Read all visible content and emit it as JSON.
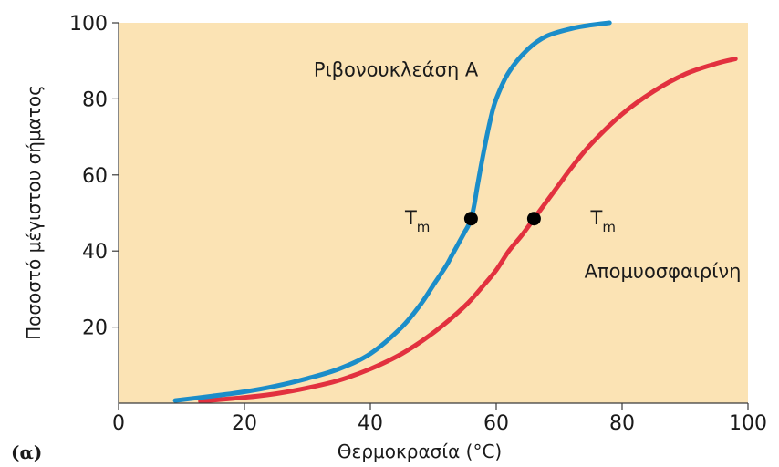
{
  "chart_data": {
    "type": "line",
    "panel_label": "(α)",
    "xlabel": "Θερμοκρασία (°C)",
    "ylabel": "Ποσοστό μέγιστου σήματος",
    "xlim": [
      0,
      100
    ],
    "ylim": [
      0,
      100
    ],
    "x_ticks": [
      0,
      20,
      40,
      60,
      80,
      100
    ],
    "y_ticks": [
      20,
      40,
      60,
      80,
      100
    ],
    "background_color": "#FBE3B4",
    "grid": false,
    "series": [
      {
        "name": "Ριβονουκλεάση Α",
        "color": "#1B8DC9",
        "x": [
          9,
          15,
          20,
          25,
          30,
          35,
          40,
          45,
          48,
          50,
          52,
          53,
          54,
          55,
          55.5,
          56,
          56.5,
          57,
          58,
          59,
          60,
          62,
          65,
          68,
          72,
          75,
          78
        ],
        "y": [
          0.7,
          1.9,
          3.0,
          4.5,
          6.5,
          9,
          13,
          20,
          26,
          31,
          36,
          39,
          42,
          45,
          46.5,
          48.5,
          52,
          57,
          66,
          74,
          80,
          87,
          93,
          96.5,
          98.5,
          99.4,
          100
        ]
      },
      {
        "name": "Απομυοσφαιρίνη",
        "color": "#E2313F",
        "x": [
          13,
          20,
          25,
          30,
          35,
          40,
          45,
          50,
          55,
          58,
          60,
          62,
          64,
          66,
          68,
          70,
          72,
          75,
          80,
          85,
          90,
          95,
          98
        ],
        "y": [
          0.5,
          1.5,
          2.5,
          4,
          6,
          9,
          13,
          18.5,
          25.5,
          31,
          35,
          40,
          44,
          48.5,
          53,
          57.5,
          62,
          68,
          76,
          82,
          86.5,
          89.3,
          90.5
        ]
      }
    ],
    "annotations": [
      {
        "text": "Ριβονουκλεάση Α",
        "x": 31,
        "y": 86
      },
      {
        "text": "Απομυοσφαιρίνη",
        "x": 74,
        "y": 33
      },
      {
        "text": "T",
        "subscript": "m",
        "x": 45.5,
        "y": 47,
        "marker_x": 56,
        "marker_y": 48.5,
        "series": "Ριβονουκλεάση Α"
      },
      {
        "text": "T",
        "subscript": "m",
        "x": 75,
        "y": 47,
        "marker_x": 66,
        "marker_y": 48.5,
        "series": "Απομυοσφαιρίνη"
      }
    ]
  }
}
